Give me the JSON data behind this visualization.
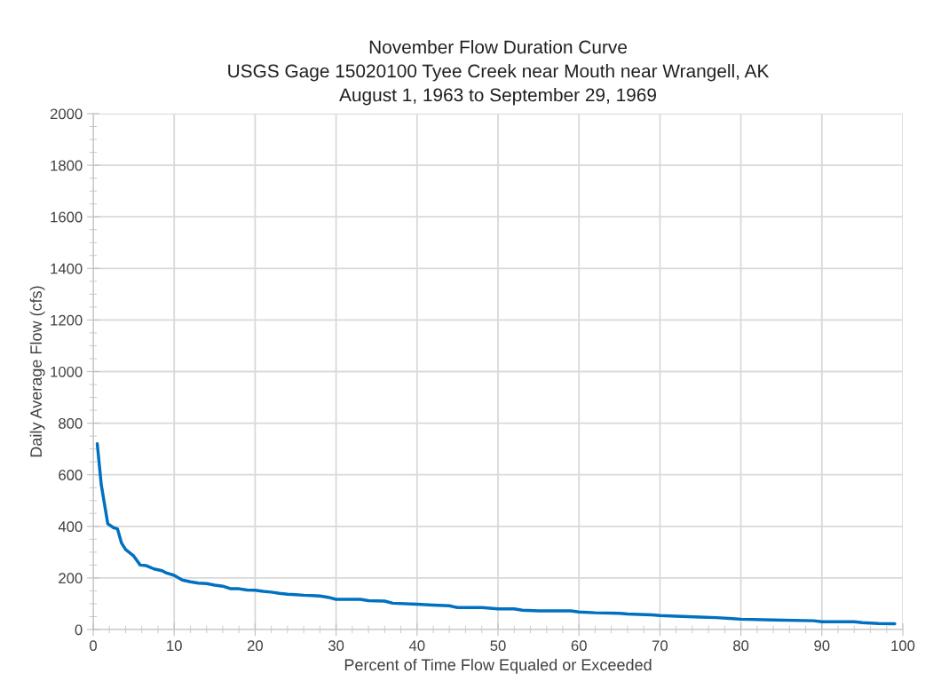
{
  "chart_data": {
    "type": "line",
    "title": "November Flow Duration Curve\nUSGS Gage 15020100 Tyee Creek near Mouth near Wrangell, AK\nAugust 1, 1963 to September 29, 1969",
    "xlabel": "Percent of Time Flow Equaled or Exceeded",
    "ylabel": "Daily Average Flow (cfs)",
    "series": [
      {
        "color": "#0070c0",
        "x": [
          0.5,
          1,
          1.8,
          2.5,
          3,
          3.5,
          4,
          5,
          5.8,
          6.5,
          7.5,
          8.5,
          9,
          10,
          11,
          12,
          13,
          14,
          15,
          16,
          17,
          18,
          19,
          20,
          21,
          22,
          23,
          24,
          25,
          26,
          27,
          28,
          29,
          30,
          33,
          34,
          36,
          37,
          40,
          42,
          44,
          45,
          48,
          50,
          52,
          53,
          55,
          59,
          60,
          62,
          65,
          66,
          69,
          70,
          72,
          75,
          77,
          79,
          80,
          84,
          89,
          90,
          94,
          95,
          97,
          99
        ],
        "values": [
          720,
          560,
          410,
          395,
          390,
          335,
          310,
          285,
          250,
          248,
          235,
          228,
          220,
          210,
          192,
          185,
          180,
          178,
          172,
          168,
          158,
          158,
          153,
          152,
          148,
          145,
          140,
          137,
          135,
          133,
          132,
          130,
          125,
          117,
          117,
          112,
          110,
          102,
          98,
          95,
          92,
          85,
          85,
          80,
          80,
          75,
          72,
          72,
          68,
          65,
          63,
          60,
          57,
          54,
          52,
          48,
          46,
          42,
          40,
          37,
          34,
          30,
          30,
          27,
          23,
          22
        ]
      }
    ],
    "xlim": [
      0,
      100
    ],
    "xticks": [
      0,
      10,
      20,
      30,
      40,
      50,
      60,
      70,
      80,
      90,
      100
    ],
    "ylim": [
      0,
      2000
    ],
    "yticks": [
      0,
      200,
      400,
      600,
      800,
      1000,
      1200,
      1400,
      1600,
      1800,
      2000
    ],
    "grid": true,
    "marker": "none",
    "line_style": "solid"
  }
}
